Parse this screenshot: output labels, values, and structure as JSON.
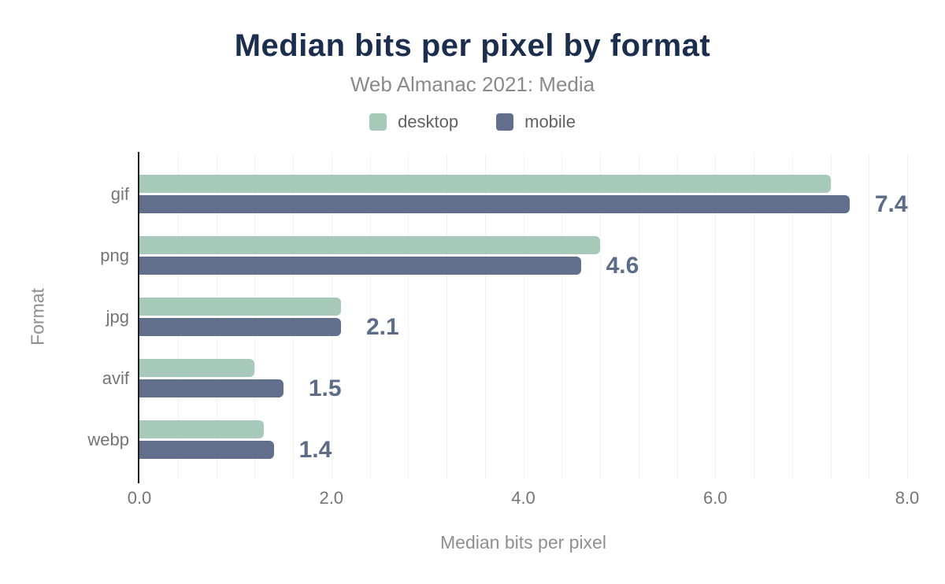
{
  "header": {
    "title": "Median bits per pixel by format",
    "subtitle": "Web Almanac 2021: Media"
  },
  "legend": [
    {
      "label": "desktop",
      "color": "#a7c9ba",
      "icon": "desktop-swatch-square"
    },
    {
      "label": "mobile",
      "color": "#616f8c",
      "icon": "mobile-swatch-square"
    }
  ],
  "chart_data": {
    "type": "bar",
    "orientation": "horizontal",
    "title": "Median bits per pixel by format",
    "subtitle": "Web Almanac 2021: Media",
    "categories": [
      "gif",
      "png",
      "jpg",
      "avif",
      "webp"
    ],
    "series": [
      {
        "name": "desktop",
        "color": "#a7c9ba",
        "values": [
          7.2,
          4.8,
          2.1,
          1.2,
          1.3
        ]
      },
      {
        "name": "mobile",
        "color": "#616f8c",
        "values": [
          7.4,
          4.6,
          2.1,
          1.5,
          1.4
        ]
      }
    ],
    "value_labels": [
      "7.4",
      "4.6",
      "2.1",
      "1.5",
      "1.4"
    ],
    "value_label_series": "mobile",
    "xlabel": "Median bits per pixel",
    "ylabel": "Format",
    "xlim": [
      0,
      8
    ],
    "x_tick_labels": [
      "0.0",
      "2.0",
      "4.0",
      "6.0",
      "8.0"
    ],
    "x_tick_values": [
      0,
      2,
      4,
      6,
      8
    ],
    "minor_grid_step": 0.4,
    "grid": true,
    "legend_position": "top",
    "colors": {
      "title": "#1c2e4e",
      "subtitle": "#8a8a8a",
      "axis_text": "#757575",
      "gridline": "#f2f2f2",
      "axis_line": "#212121",
      "value_label": "#5d6c88"
    }
  }
}
